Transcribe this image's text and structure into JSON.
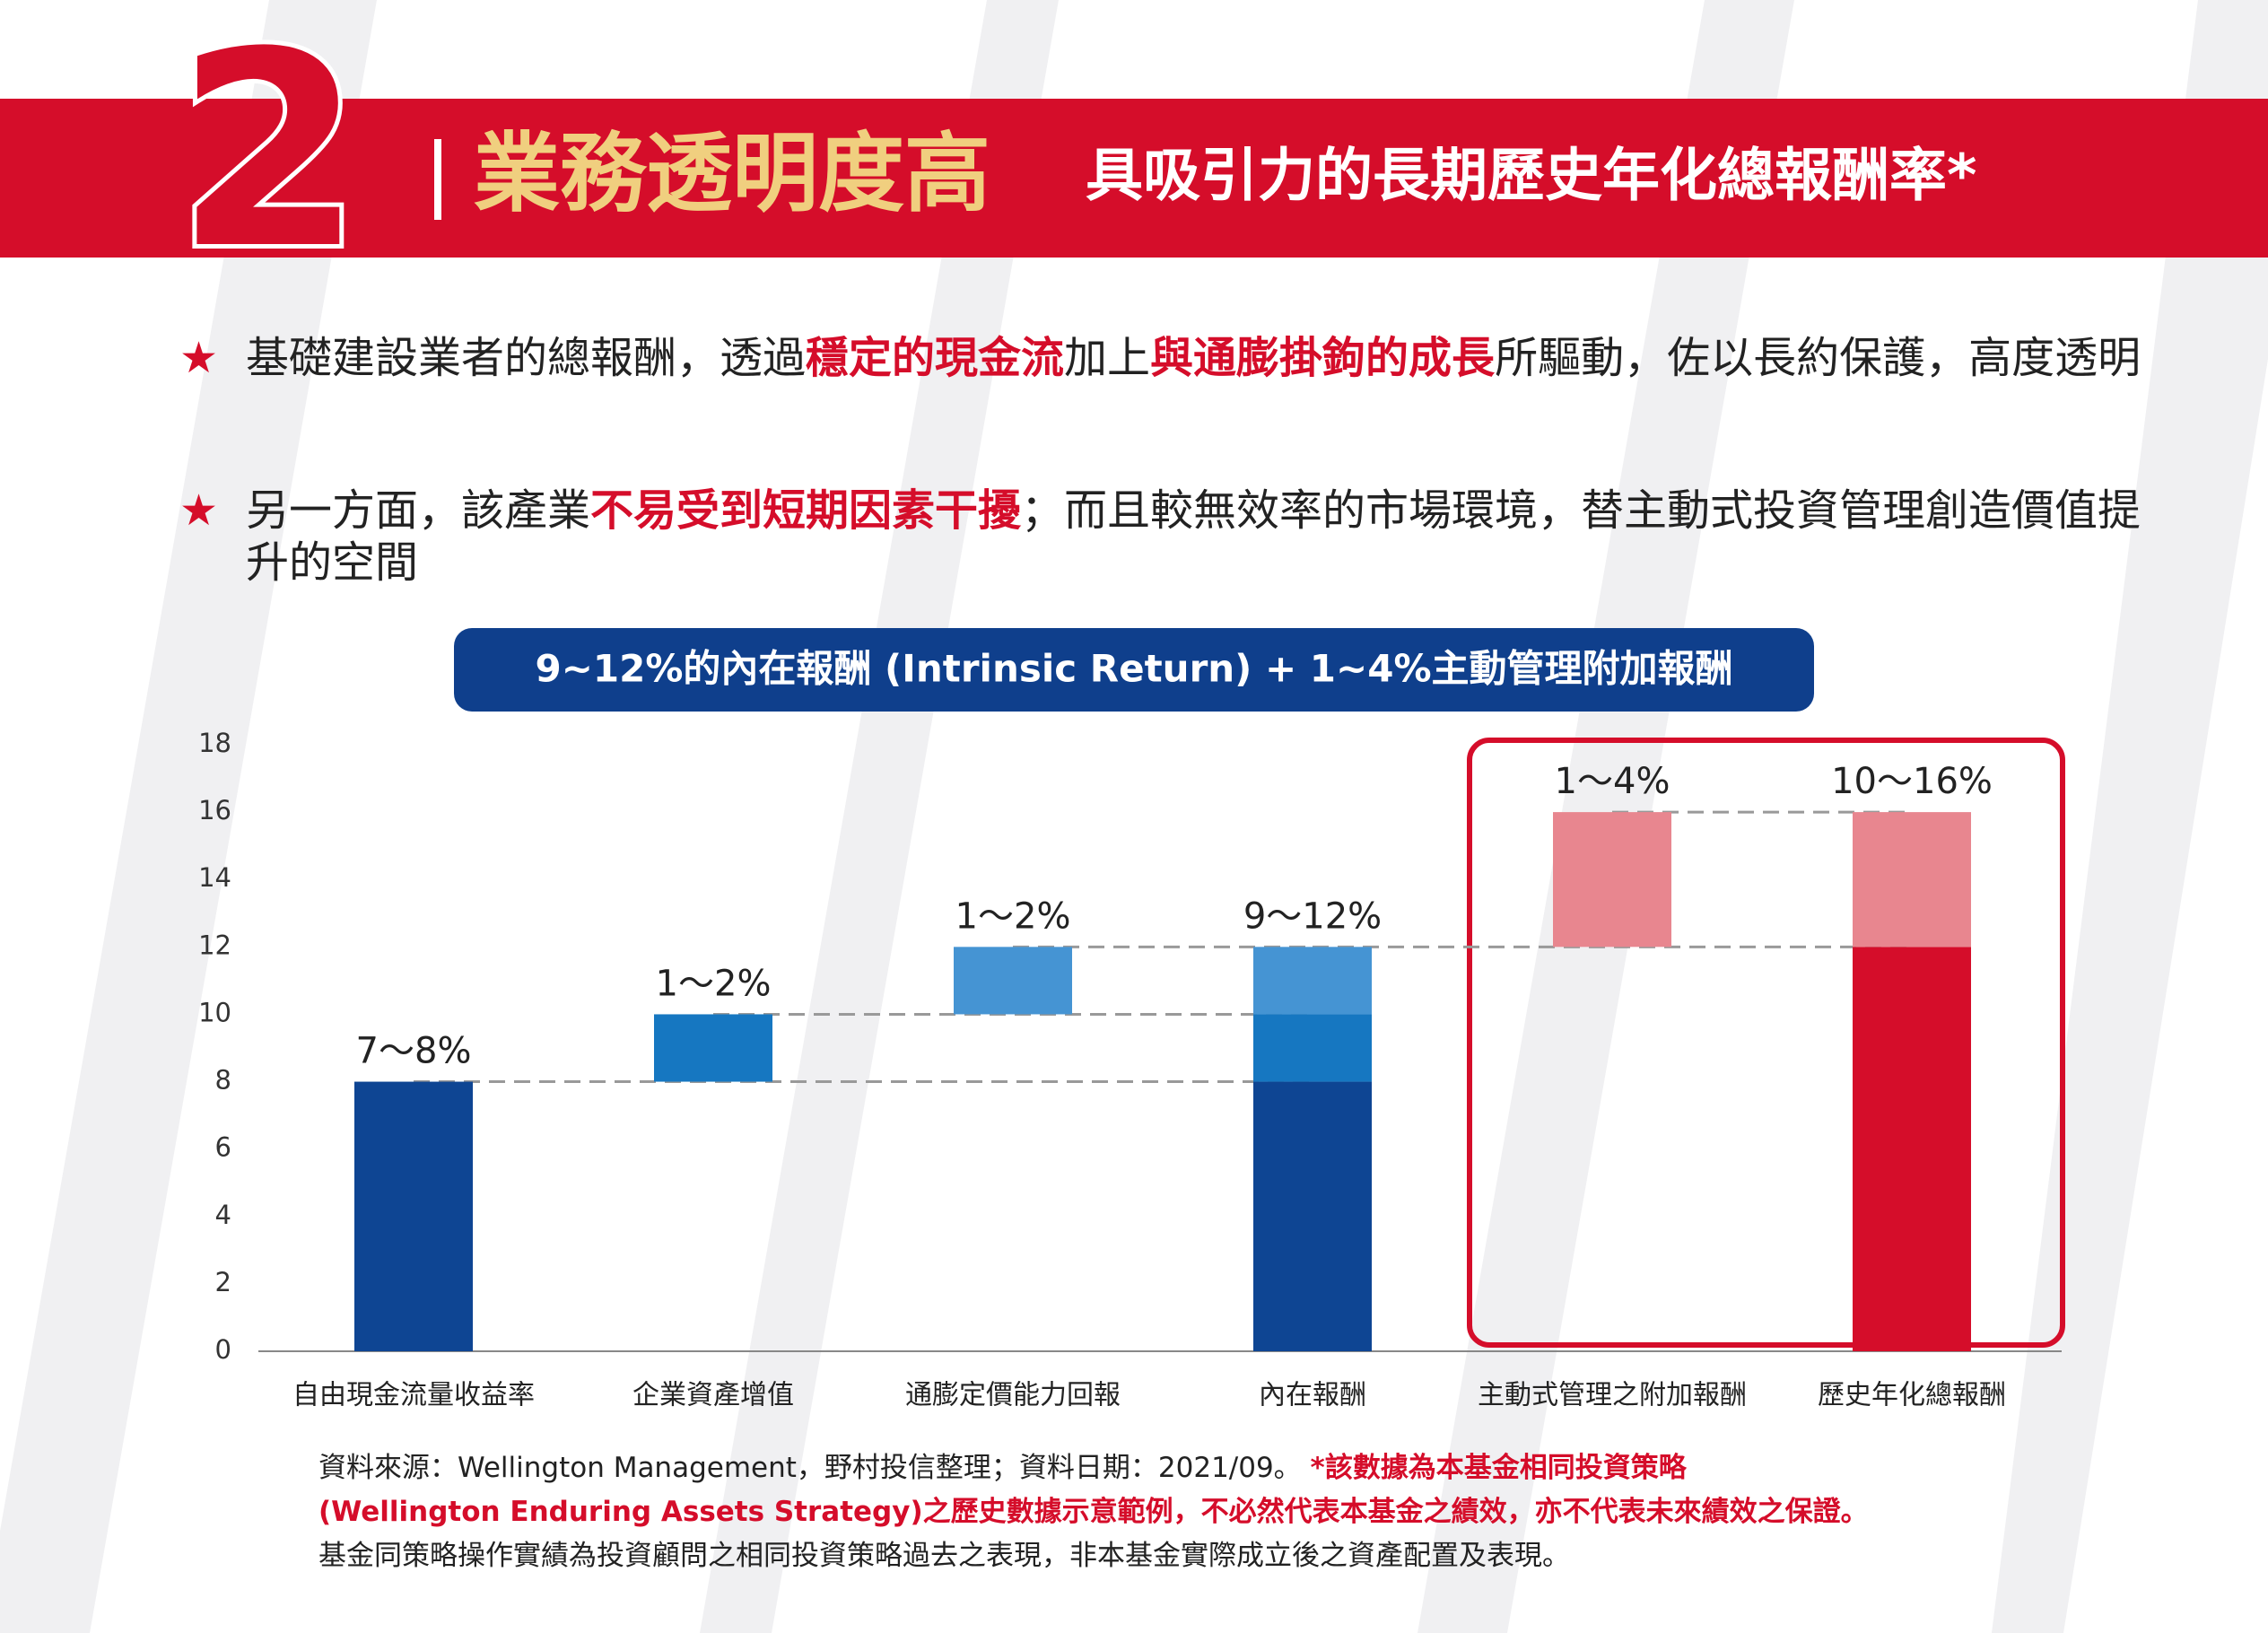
{
  "header": {
    "number": "2",
    "title": "業務透明度高",
    "subtitle": "具吸引力的長期歷史年化總報酬率*"
  },
  "bullets": [
    {
      "segments": [
        {
          "text": "基礎建設業者的總報酬，透過",
          "emphasis": false
        },
        {
          "text": "穩定的現金流",
          "emphasis": true
        },
        {
          "text": "加上",
          "emphasis": false
        },
        {
          "text": "與通膨掛鉤的成長",
          "emphasis": true
        },
        {
          "text": "所驅動，佐以長約保護，高度透明",
          "emphasis": false
        }
      ]
    },
    {
      "segments": [
        {
          "text": "另一方面，該產業",
          "emphasis": false
        },
        {
          "text": "不易受到短期因素干擾",
          "emphasis": true
        },
        {
          "text": "；而且較無效率的市場環境，替主動式投資管理創造價值提升的空間",
          "emphasis": false
        }
      ]
    }
  ],
  "chart_data": {
    "type": "waterfall",
    "subtitle": "9~12%的內在報酬 (Intrinsic Return) + 1~4%主動管理附加報酬",
    "categories": [
      "自由現金流量收益率",
      "企業資產增值",
      "通膨定價能力回報",
      "內在報酬",
      "主動式管理之附加報酬",
      "歷史年化總報酬"
    ],
    "values": [
      8,
      2,
      2,
      null,
      4,
      null
    ],
    "value_labels": [
      "7～8%",
      "1～2%",
      "1～2%",
      "9～12%",
      "1～4%",
      "10～16%"
    ],
    "is_total": [
      false,
      false,
      false,
      true,
      false,
      true
    ],
    "colors": [
      "#0e4593",
      "#1677c1",
      "#4594d3",
      null,
      "#e8868f",
      "#d50d2a"
    ],
    "ylim": [
      0,
      18
    ],
    "yticks": [
      0,
      2,
      4,
      6,
      8,
      10,
      12,
      14,
      16,
      18
    ],
    "grid": false
  },
  "footnote": [
    {
      "segments": [
        {
          "text": "資料來源：Wellington Management，野村投信整理；資料日期：2021/09。 ",
          "emphasis": false
        },
        {
          "text": "*該數據為本基金相同投資策略",
          "emphasis": true
        }
      ]
    },
    {
      "segments": [
        {
          "text": "(Wellington Enduring Assets Strategy)之歷史數據示意範例，不必然代表本基金之績效，亦不代表未來績效之保證。",
          "emphasis": true
        }
      ]
    },
    {
      "segments": [
        {
          "text": "基金同策略操作實績為投資顧問之相同投資策略過去之表現，非本基金實際成立後之資產配置及表現。",
          "emphasis": false
        }
      ]
    }
  ]
}
